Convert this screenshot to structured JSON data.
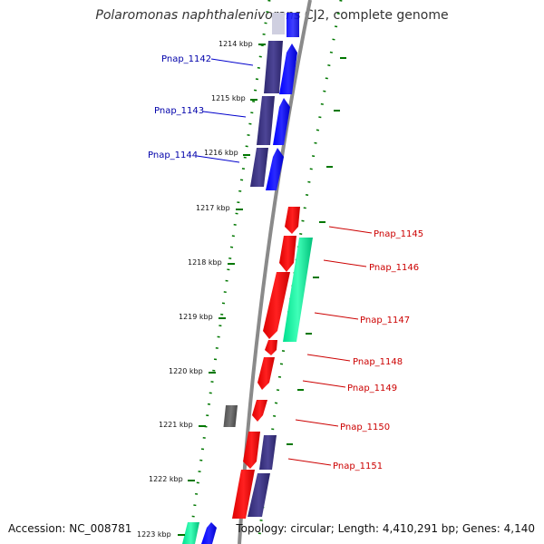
{
  "title": {
    "species": "Polaromonas naphthalenivorans",
    "strain": " CJ2, complete genome"
  },
  "footer": {
    "accession": "Accession: NC_008781",
    "topology": "Topology: circular; Length: 4,410,291 bp; Genes: 4,140"
  },
  "ticks": [
    "1214 kbp",
    "1215 kbp",
    "1216 kbp",
    "1217 kbp",
    "1218 kbp",
    "1219 kbp",
    "1220 kbp",
    "1221 kbp",
    "1222 kbp",
    "1223 kbp"
  ],
  "genes": [
    {
      "label": "Pnap_1142",
      "strand": "reverse"
    },
    {
      "label": "Pnap_1143",
      "strand": "reverse"
    },
    {
      "label": "Pnap_1144",
      "strand": "reverse"
    },
    {
      "label": "Pnap_1145",
      "strand": "forward"
    },
    {
      "label": "Pnap_1146",
      "strand": "forward"
    },
    {
      "label": "Pnap_1147",
      "strand": "forward"
    },
    {
      "label": "Pnap_1148",
      "strand": "forward"
    },
    {
      "label": "Pnap_1149",
      "strand": "forward"
    },
    {
      "label": "Pnap_1150",
      "strand": "forward"
    },
    {
      "label": "Pnap_1151",
      "strand": "forward"
    }
  ],
  "colors": {
    "reverse_label": "#0000aa",
    "forward_label": "#cc0000",
    "cds_blue": "#0000ff",
    "cds_navy": "#3d3583",
    "cds_red": "#ff0000",
    "cds_green": "#00ee99",
    "cds_gray": "#666666",
    "tick_green": "#006600",
    "backbone": "#888888"
  }
}
